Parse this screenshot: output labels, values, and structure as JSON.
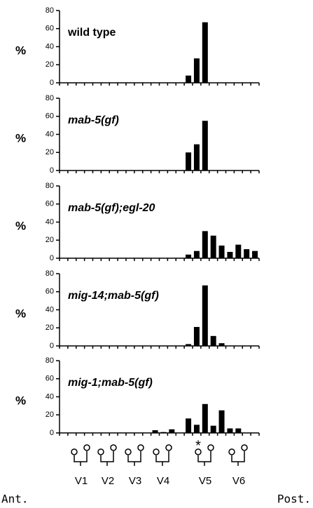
{
  "chart_data": [
    {
      "type": "bar",
      "title": "wild type",
      "ylabel": "%",
      "italic": false,
      "categories": [
        null,
        null,
        null,
        null,
        null,
        null,
        null,
        null,
        null,
        null,
        null,
        null,
        null,
        null,
        null,
        null,
        null,
        null,
        null,
        null,
        null,
        null,
        null,
        null
      ],
      "values": [
        0,
        0,
        0,
        0,
        0,
        0,
        0,
        0,
        0,
        0,
        0,
        0,
        0,
        0,
        0,
        8,
        27,
        67,
        0,
        0,
        0,
        0,
        0,
        0
      ],
      "color": "#000000",
      "ylim": [
        0,
        80
      ],
      "yticks": [
        0,
        20,
        40,
        60,
        80
      ]
    },
    {
      "type": "bar",
      "title": "mab-5(gf)",
      "ylabel": "%",
      "italic": true,
      "categories": [
        null,
        null,
        null,
        null,
        null,
        null,
        null,
        null,
        null,
        null,
        null,
        null,
        null,
        null,
        null,
        null,
        null,
        null,
        null,
        null,
        null,
        null,
        null,
        null
      ],
      "values": [
        0,
        0,
        0,
        0,
        0,
        0,
        0,
        0,
        0,
        0,
        0,
        0,
        0,
        0,
        0,
        20,
        29,
        55,
        0,
        0,
        0,
        0,
        0,
        0
      ],
      "color": "#000000",
      "ylim": [
        0,
        80
      ],
      "yticks": [
        0,
        20,
        40,
        60,
        80
      ]
    },
    {
      "type": "bar",
      "title": "mab-5(gf);egl-20",
      "ylabel": "%",
      "italic": true,
      "categories": [
        null,
        null,
        null,
        null,
        null,
        null,
        null,
        null,
        null,
        null,
        null,
        null,
        null,
        null,
        null,
        null,
        null,
        null,
        null,
        null,
        null,
        null,
        null,
        null
      ],
      "values": [
        0,
        0,
        0,
        0,
        0,
        0,
        0,
        0,
        0,
        0,
        0,
        0,
        0,
        0,
        0,
        4,
        8,
        30,
        25,
        14,
        7,
        15,
        10,
        8
      ],
      "color": "#000000",
      "ylim": [
        0,
        80
      ],
      "yticks": [
        0,
        20,
        40,
        60,
        80
      ]
    },
    {
      "type": "bar",
      "title": "mig-14;mab-5(gf)",
      "ylabel": "%",
      "italic": true,
      "categories": [
        null,
        null,
        null,
        null,
        null,
        null,
        null,
        null,
        null,
        null,
        null,
        null,
        null,
        null,
        null,
        null,
        null,
        null,
        null,
        null,
        null,
        null,
        null,
        null
      ],
      "values": [
        0,
        0,
        0,
        0,
        0,
        0,
        0,
        0,
        0,
        0,
        0,
        0,
        0,
        0,
        0,
        2,
        21,
        67,
        11,
        3,
        0,
        0,
        0,
        0
      ],
      "color": "#000000",
      "ylim": [
        0,
        80
      ],
      "yticks": [
        0,
        20,
        40,
        60,
        80
      ]
    },
    {
      "type": "bar",
      "title": "mig-1;mab-5(gf)",
      "ylabel": "%",
      "italic": true,
      "categories": [
        null,
        null,
        null,
        null,
        null,
        null,
        null,
        null,
        null,
        null,
        null,
        null,
        null,
        null,
        null,
        null,
        null,
        null,
        null,
        null,
        null,
        null,
        null,
        null
      ],
      "values": [
        0,
        0,
        0,
        0,
        0,
        0,
        0,
        0,
        0,
        0,
        0,
        3,
        1,
        4,
        0,
        16,
        9,
        32,
        8,
        25,
        5,
        5,
        0,
        0
      ],
      "color": "#000000",
      "ylim": [
        0,
        80
      ],
      "yticks": [
        0,
        20,
        40,
        60,
        80
      ]
    }
  ],
  "diagram": {
    "marker": "*",
    "cells": [
      "V1",
      "V2",
      "V3",
      "V4",
      "V5",
      "V6"
    ],
    "anterior": "Ant.",
    "posterior": "Post."
  }
}
